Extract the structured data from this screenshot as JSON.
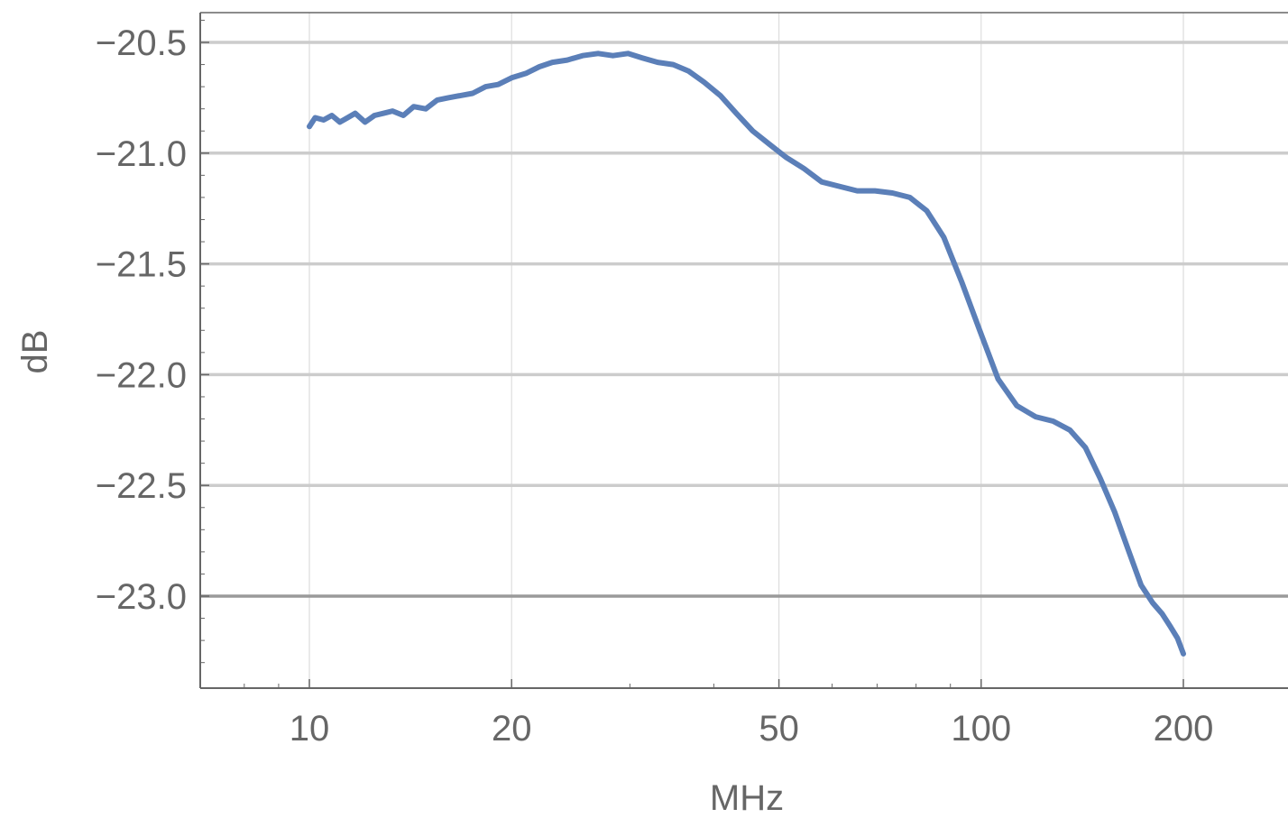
{
  "chart_data": {
    "type": "line",
    "xlabel": "MHz",
    "ylabel": "dB",
    "x_scale": "log",
    "xlim": [
      7,
      280
    ],
    "ylim": [
      -23.4,
      -20.37
    ],
    "x_ticks": [
      10,
      20,
      50,
      100,
      200
    ],
    "x_tick_labels": [
      "10",
      "20",
      "50",
      "100",
      "200"
    ],
    "y_ticks": [
      -20.5,
      -21.0,
      -21.5,
      -22.0,
      -22.5,
      -23.0
    ],
    "y_tick_labels": [
      "−20.5",
      "−21.0",
      "−21.5",
      "−22.0",
      "−22.5",
      "−23.0"
    ],
    "grid": "horizontal major at y ticks, vertical at 10, 20, 50, 100, 200",
    "line_color": "#5b7fb8",
    "grid_color": "#cccccc",
    "frame_color": "#666666",
    "series": [
      {
        "x": [
          10.0,
          10.2,
          10.5,
          10.8,
          11.1,
          11.4,
          11.7,
          12.1,
          12.5,
          12.9,
          13.3,
          13.8,
          14.3,
          14.9,
          15.5,
          16.1,
          16.8,
          17.5,
          18.3,
          19.1,
          20.0,
          21.0,
          22.0,
          23.0,
          24.2,
          25.5,
          26.9,
          28.3,
          29.8,
          31.3,
          33.0,
          34.8,
          36.7,
          38.7,
          40.9,
          43.2,
          45.7,
          48.4,
          51.3,
          54.5,
          57.9,
          61.5,
          65.4,
          69.5,
          73.8,
          78.3,
          83.0,
          88.0,
          93.5,
          99.5,
          106.0,
          113.0,
          120.5,
          128.0,
          135.5,
          143.0,
          150.5,
          158.0,
          165.5,
          173.0,
          180.0,
          186.0,
          191.5,
          196.0,
          200.0
        ],
        "y": [
          -20.88,
          -20.84,
          -20.85,
          -20.83,
          -20.86,
          -20.84,
          -20.82,
          -20.86,
          -20.83,
          -20.82,
          -20.81,
          -20.83,
          -20.79,
          -20.8,
          -20.76,
          -20.75,
          -20.74,
          -20.73,
          -20.7,
          -20.69,
          -20.66,
          -20.64,
          -20.61,
          -20.59,
          -20.58,
          -20.56,
          -20.55,
          -20.56,
          -20.55,
          -20.57,
          -20.59,
          -20.6,
          -20.63,
          -20.68,
          -20.74,
          -20.82,
          -20.9,
          -20.96,
          -21.02,
          -21.07,
          -21.13,
          -21.15,
          -21.17,
          -21.17,
          -21.18,
          -21.2,
          -21.26,
          -21.38,
          -21.58,
          -21.8,
          -22.02,
          -22.14,
          -22.19,
          -22.21,
          -22.25,
          -22.33,
          -22.47,
          -22.62,
          -22.79,
          -22.95,
          -23.03,
          -23.08,
          -23.14,
          -23.19,
          -23.26
        ]
      }
    ]
  }
}
